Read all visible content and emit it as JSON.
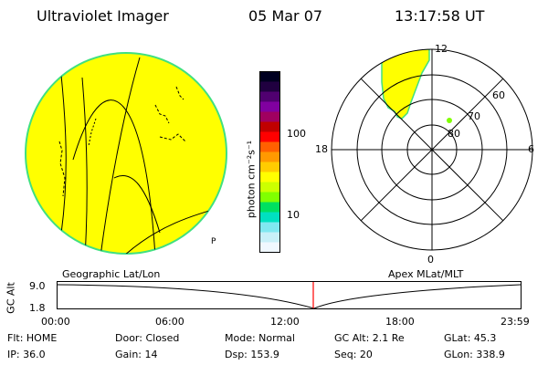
{
  "header": {
    "title": "Ultraviolet Imager",
    "date": "05 Mar 07",
    "time": "13:17:58 UT"
  },
  "colorbar": {
    "unit_label": "photon cm⁻²s⁻¹",
    "ticks": [
      "100",
      "10"
    ],
    "colors": [
      "#000020",
      "#200040",
      "#500070",
      "#8000a0",
      "#a00060",
      "#c00000",
      "#ff0000",
      "#ff6000",
      "#ff9900",
      "#ffcc00",
      "#ffff00",
      "#ccff00",
      "#80ff00",
      "#00e060",
      "#00e0c0",
      "#80e8f0",
      "#c8f0f8",
      "#f0f8ff"
    ]
  },
  "polar": {
    "ring_labels": [
      "60",
      "70",
      "80"
    ],
    "mlt_labels": {
      "top": "12",
      "left": "18",
      "right": "6",
      "bottom": "0"
    },
    "fill_color": "#ffff00",
    "grid_color": "#000000"
  },
  "earth": {
    "fill_color": "#ffff00",
    "edge_color": "#40e080"
  },
  "labels": {
    "geo": "Geographic Lat/Lon",
    "apex": "Apex MLat/MLT"
  },
  "altitude": {
    "axis_label": "GC Alt",
    "y_ticks": [
      "9.0",
      "1.8"
    ],
    "x_ticks": [
      "00:00",
      "06:00",
      "12:00",
      "18:00",
      "23:59"
    ],
    "marker_color": "#ff0000"
  },
  "info": {
    "flt": "Flt: HOME",
    "ip": "IP: 36.0",
    "door": "Door: Closed",
    "gain": "Gain: 14",
    "mode": "Mode: Normal",
    "dsp": "Dsp:  153.9",
    "gcalt": "GC Alt: 2.1 Re",
    "seq": "Seq: 20",
    "glat": "GLat:  45.3",
    "glon": "GLon: 338.9"
  }
}
